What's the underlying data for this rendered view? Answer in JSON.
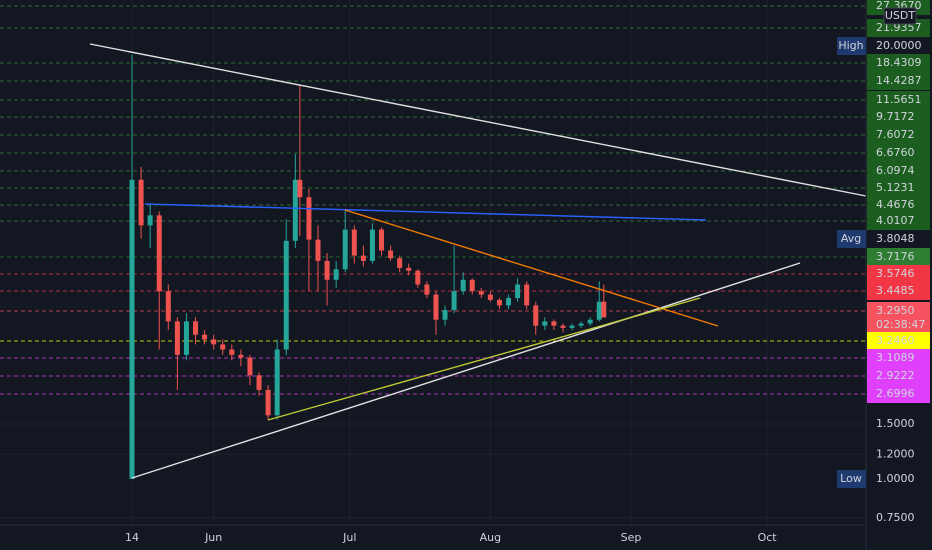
{
  "chart_data": {
    "type": "candlestick",
    "currency": "USDT",
    "countdown": "02:38:47",
    "log_scale": true,
    "grid": true,
    "up_color": "#26a69a",
    "down_color": "#ef5350",
    "xlim": [
      -15.1,
      175.8
    ],
    "xticks": [
      14,
      {
        "value": 32,
        "label": "Jun"
      },
      {
        "value": 62,
        "label": "Jul"
      },
      {
        "value": 93,
        "label": "Aug"
      },
      {
        "value": 124,
        "label": "Sep"
      },
      {
        "value": 154,
        "label": "Oct"
      }
    ],
    "ylim": [
      0.712,
      34.3
    ],
    "yticks": [
      {
        "value": 1.5,
        "label": "1.5000"
      },
      {
        "value": 1.2,
        "label": "1.2000"
      },
      {
        "value": 0.75,
        "label": "0.7500"
      }
    ],
    "x": [
      14,
      16,
      18,
      20,
      22,
      24,
      26,
      28,
      30,
      32,
      34,
      36,
      38,
      40,
      42,
      44,
      46,
      48,
      50,
      51,
      53,
      55,
      57,
      59,
      61,
      63,
      65,
      67,
      69,
      71,
      73,
      75,
      77,
      79,
      81,
      83,
      85,
      87,
      89,
      91,
      93,
      95,
      97,
      99,
      101,
      103,
      105,
      107,
      109,
      111,
      113,
      115,
      117,
      118
    ],
    "open": [
      1.0,
      9.1,
      6.5,
      7.0,
      4.0,
      3.2,
      2.5,
      3.2,
      2.9,
      2.8,
      2.7,
      2.6,
      2.5,
      2.45,
      2.15,
      1.93,
      1.6,
      2.6,
      5.8,
      9.1,
      8.0,
      5.85,
      5.0,
      4.35,
      4.7,
      6.3,
      5.2,
      5.0,
      6.3,
      5.4,
      5.1,
      4.75,
      4.65,
      4.2,
      3.9,
      3.24,
      3.48,
      4.0,
      4.35,
      4.0,
      3.9,
      3.75,
      3.6,
      3.8,
      4.2,
      3.6,
      3.1,
      3.2,
      3.1,
      3.05,
      3.1,
      3.15,
      3.24,
      3.7
    ],
    "high": [
      22.9,
      10.0,
      7.6,
      7.2,
      4.2,
      3.3,
      3.4,
      3.3,
      3.0,
      2.9,
      2.8,
      2.7,
      2.6,
      2.5,
      2.2,
      2.0,
      2.8,
      6.8,
      11.0,
      18.3,
      8.5,
      6.5,
      5.3,
      5.0,
      7.3,
      6.5,
      5.6,
      6.6,
      6.4,
      5.6,
      5.2,
      4.9,
      4.7,
      4.3,
      4.0,
      3.6,
      5.6,
      4.6,
      4.4,
      4.1,
      4.0,
      3.8,
      3.9,
      4.4,
      4.3,
      3.7,
      3.3,
      3.25,
      3.15,
      3.15,
      3.2,
      3.3,
      4.3,
      4.2
    ],
    "low": [
      1.0,
      5.9,
      5.5,
      2.6,
      3.0,
      1.93,
      2.4,
      2.7,
      2.7,
      2.6,
      2.5,
      2.4,
      2.3,
      2.0,
      1.85,
      1.55,
      1.55,
      2.5,
      5.5,
      6.0,
      4.0,
      4.0,
      3.6,
      4.1,
      4.6,
      4.9,
      4.8,
      4.9,
      5.2,
      5.0,
      4.6,
      4.5,
      4.1,
      3.8,
      2.9,
      3.1,
      3.4,
      3.9,
      3.9,
      3.8,
      3.7,
      3.5,
      3.5,
      3.7,
      3.5,
      2.9,
      3.0,
      3.0,
      2.95,
      3.0,
      3.05,
      3.1,
      3.2,
      3.3
    ],
    "close": [
      9.1,
      6.5,
      7.0,
      4.0,
      3.2,
      2.5,
      3.2,
      2.9,
      2.8,
      2.7,
      2.6,
      2.5,
      2.45,
      2.15,
      1.93,
      1.6,
      2.6,
      5.8,
      9.1,
      8.0,
      5.85,
      5.0,
      4.35,
      4.7,
      6.3,
      5.2,
      5.0,
      6.3,
      5.4,
      5.1,
      4.75,
      4.65,
      4.2,
      3.9,
      3.24,
      3.48,
      4.0,
      4.35,
      4.0,
      3.9,
      3.75,
      3.6,
      3.8,
      4.2,
      3.6,
      3.1,
      3.2,
      3.1,
      3.05,
      3.1,
      3.15,
      3.24,
      3.7,
      3.295
    ],
    "levels": [
      {
        "value": 27.367,
        "label": "27.3670",
        "color": "#1b5e20"
      },
      {
        "value": 21.9357,
        "label": "21.9357",
        "color": "#1b5e20"
      },
      {
        "value": 20,
        "label": "20.0000",
        "tag": "High",
        "color": "#131722"
      },
      {
        "value": 18.4309,
        "label": "18.4309",
        "color": "#1b5e20"
      },
      {
        "value": 14.4287,
        "label": "14.4287",
        "color": "#1b5e20"
      },
      {
        "value": 11.5651,
        "label": "11.5651",
        "color": "#1b5e20"
      },
      {
        "value": 9.7172,
        "label": "9.7172",
        "color": "#1b5e20"
      },
      {
        "value": 7.6072,
        "label": "7.6072",
        "color": "#1b5e20"
      },
      {
        "value": 6.676,
        "label": "6.6760",
        "color": "#1b5e20"
      },
      {
        "value": 6.0974,
        "label": "6.0974",
        "color": "#1b5e20"
      },
      {
        "value": 5.1231,
        "label": "5.1231",
        "color": "#1b5e20"
      },
      {
        "value": 4.4676,
        "label": "4.4676",
        "color": "#1b5e20"
      },
      {
        "value": 4.0107,
        "label": "4.0107",
        "color": "#1b5e20"
      },
      {
        "value": 3.8048,
        "label": "3.8048",
        "tag": "Avg",
        "color": "#131722"
      },
      {
        "value": 3.7176,
        "label": "3.7176",
        "color": "#2e7d32"
      },
      {
        "value": 3.5746,
        "label": "3.5746",
        "color": "#f23645"
      },
      {
        "value": 3.4485,
        "label": "3.4485",
        "color": "#f23645"
      },
      {
        "value": 3.295,
        "label": "3.2950",
        "color": "#f7525f"
      },
      {
        "value": 3.246,
        "label": "3.2460",
        "color": "#ffff00"
      },
      {
        "value": 3.1089,
        "label": "3.1089",
        "color": "#e040fb"
      },
      {
        "value": 2.9222,
        "label": "2.9222",
        "color": "#e040fb"
      },
      {
        "value": 2.6996,
        "label": "2.6996",
        "color": "#e040fb"
      },
      {
        "value": 1,
        "label": "1.0000",
        "tag": "Low",
        "color": "#131722"
      }
    ]
  }
}
